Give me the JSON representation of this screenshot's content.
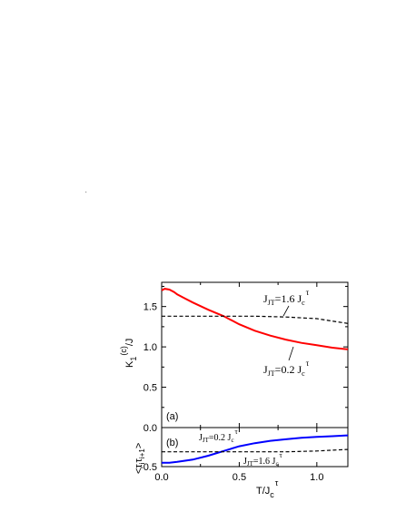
{
  "chart_data": [
    {
      "type": "line",
      "panel_label": "(a)",
      "ylabel": "K",
      "ylabel_sub": "1",
      "ylabel_sup": "(c)",
      "ylabel_tail": "/J",
      "xlim": [
        0.0,
        1.2
      ],
      "ylim": [
        0.0,
        1.8
      ],
      "yticks": [
        "0.0",
        "0.5",
        "1.0",
        "1.5"
      ],
      "series": [
        {
          "name": "J_JT=0.2 J_c^τ",
          "color": "#ff0000",
          "style": "solid",
          "x": [
            0.0,
            0.02,
            0.05,
            0.08,
            0.1,
            0.15,
            0.2,
            0.3,
            0.4,
            0.5,
            0.6,
            0.7,
            0.8,
            0.9,
            1.0,
            1.1,
            1.2
          ],
          "y": [
            1.7,
            1.72,
            1.71,
            1.68,
            1.65,
            1.6,
            1.55,
            1.46,
            1.38,
            1.28,
            1.2,
            1.14,
            1.09,
            1.05,
            1.02,
            0.99,
            0.97
          ]
        },
        {
          "name": "J_JT=1.6 J_c^τ",
          "color": "#000000",
          "style": "dashed",
          "x": [
            0.0,
            0.2,
            0.4,
            0.6,
            0.8,
            1.0,
            1.1,
            1.2
          ],
          "y": [
            1.38,
            1.38,
            1.38,
            1.38,
            1.37,
            1.35,
            1.32,
            1.29
          ]
        }
      ],
      "annotations": [
        {
          "base": "J",
          "sub": "JT",
          "text": "=1.6 J",
          "sub2": "c",
          "sup2": "τ"
        },
        {
          "base": "J",
          "sub": "JT",
          "text": "=0.2 J",
          "sub2": "c",
          "sup2": "τ"
        }
      ]
    },
    {
      "type": "line",
      "panel_label": "(b)",
      "ylabel": "<τ",
      "ylabel_sub": "i",
      "ylabel_mid": "τ",
      "ylabel_sub2": "i+1",
      "ylabel_tail": ">",
      "xlabel": "T/J",
      "xlabel_sub": "c",
      "xlabel_sup": "τ",
      "xlim": [
        0.0,
        1.2
      ],
      "ylim": [
        -0.5,
        0.0
      ],
      "xticks": [
        "0.0",
        "0.5",
        "1.0"
      ],
      "yticks": [
        "-0.5"
      ],
      "series": [
        {
          "name": "J_JT=0.2 J_c^τ",
          "color": "#0000ff",
          "style": "solid",
          "x": [
            0.0,
            0.05,
            0.1,
            0.2,
            0.3,
            0.4,
            0.5,
            0.6,
            0.7,
            0.8,
            0.9,
            1.0,
            1.1,
            1.2
          ],
          "y": [
            -0.45,
            -0.45,
            -0.44,
            -0.41,
            -0.36,
            -0.3,
            -0.24,
            -0.2,
            -0.17,
            -0.15,
            -0.13,
            -0.12,
            -0.11,
            -0.1
          ]
        },
        {
          "name": "J_JT=1.6 J_c^τ",
          "color": "#000000",
          "style": "dashed",
          "x": [
            0.0,
            0.2,
            0.4,
            0.6,
            0.8,
            1.0,
            1.1,
            1.2
          ],
          "y": [
            -0.31,
            -0.31,
            -0.31,
            -0.31,
            -0.31,
            -0.3,
            -0.29,
            -0.28
          ]
        }
      ],
      "annotations": [
        {
          "base": "J",
          "sub": "JT",
          "text": "=0.2 J",
          "sub2": "c",
          "sup2": "τ"
        },
        {
          "base": "J",
          "sub": "JT",
          "text": "=1.6 J",
          "sub2": "c",
          "sup2": "τ"
        }
      ]
    }
  ]
}
